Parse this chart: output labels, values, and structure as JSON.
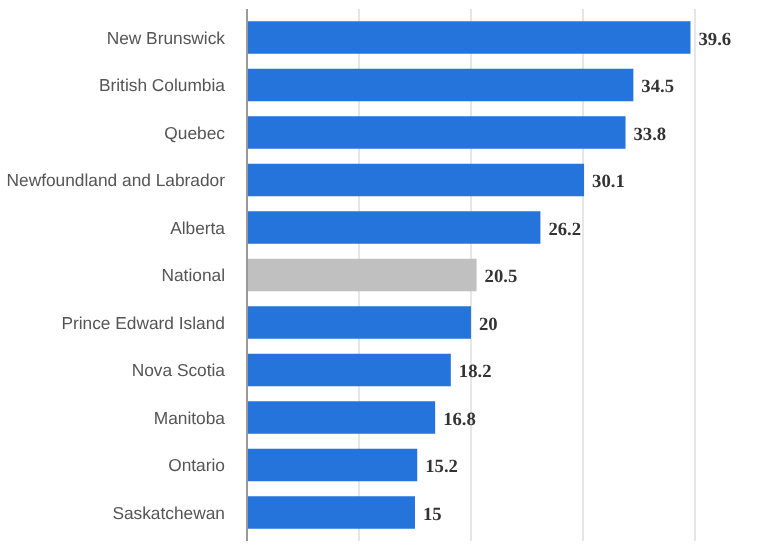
{
  "chart_data": {
    "type": "bar",
    "orientation": "horizontal",
    "categories": [
      "New Brunswick",
      "British Columbia",
      "Quebec",
      "Newfoundland and Labrador",
      "Alberta",
      "National",
      "Prince Edward Island",
      "Nova Scotia",
      "Manitoba",
      "Ontario",
      "Saskatchewan"
    ],
    "values": [
      39.6,
      34.5,
      33.8,
      30.1,
      26.2,
      20.5,
      20,
      18.2,
      16.8,
      15.2,
      15
    ],
    "colors": [
      "#2574dc",
      "#2574dc",
      "#2574dc",
      "#2574dc",
      "#2574dc",
      "#c0c0c0",
      "#2574dc",
      "#2574dc",
      "#2574dc",
      "#2574dc",
      "#2574dc"
    ],
    "grid": "x",
    "tick_labels": "y",
    "data_labels": true
  }
}
